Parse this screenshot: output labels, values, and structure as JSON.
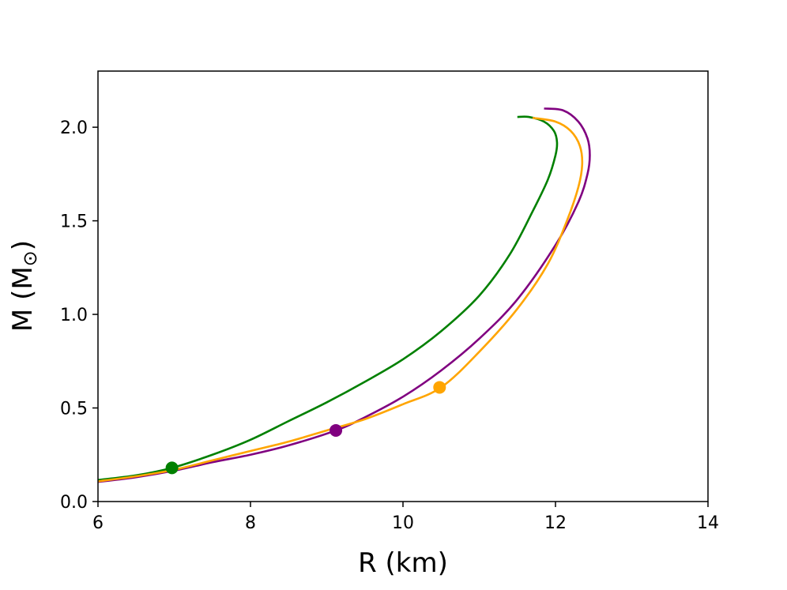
{
  "chart_data": {
    "type": "line",
    "xlabel": "R (km)",
    "ylabel": {
      "main": "M (M",
      "sub": "⊙",
      "close": ")"
    },
    "xlim": [
      6,
      14
    ],
    "ylim": [
      0,
      2.3
    ],
    "xticks": [
      6,
      8,
      10,
      12,
      14
    ],
    "yticks": [
      0.0,
      0.5,
      1.0,
      1.5,
      2.0
    ],
    "xtick_labels": [
      "6",
      "8",
      "10",
      "12",
      "14"
    ],
    "ytick_labels": [
      "0.0",
      "0.5",
      "1.0",
      "1.5",
      "2.0"
    ],
    "grid": false,
    "series": [
      {
        "color": "#008000",
        "x": [
          6.0,
          6.5,
          6.97,
          7.5,
          8.0,
          8.5,
          9.0,
          9.5,
          10.0,
          10.5,
          11.0,
          11.4,
          11.7,
          11.9,
          12.0,
          12.02,
          11.98,
          11.85,
          11.65,
          11.5
        ],
        "y": [
          0.115,
          0.14,
          0.18,
          0.25,
          0.33,
          0.43,
          0.53,
          0.64,
          0.76,
          0.91,
          1.1,
          1.32,
          1.55,
          1.72,
          1.85,
          1.92,
          1.98,
          2.03,
          2.055,
          2.055
        ],
        "marker": {
          "x": 6.97,
          "y": 0.18
        }
      },
      {
        "color": "#800080",
        "x": [
          6.0,
          6.5,
          7.0,
          7.5,
          8.0,
          8.5,
          9.12,
          9.5,
          10.0,
          10.5,
          11.0,
          11.5,
          12.0,
          12.3,
          12.42,
          12.45,
          12.42,
          12.3,
          12.1,
          11.85
        ],
        "y": [
          0.105,
          0.13,
          0.165,
          0.21,
          0.25,
          0.3,
          0.38,
          0.45,
          0.56,
          0.7,
          0.87,
          1.08,
          1.37,
          1.6,
          1.75,
          1.85,
          1.94,
          2.03,
          2.09,
          2.1
        ],
        "marker": {
          "x": 9.12,
          "y": 0.38
        }
      },
      {
        "color": "#FFA500",
        "x": [
          6.0,
          6.5,
          7.0,
          7.5,
          8.0,
          8.5,
          9.0,
          9.5,
          10.0,
          10.5,
          11.0,
          11.5,
          11.9,
          12.15,
          12.3,
          12.35,
          12.32,
          12.2,
          12.0,
          11.7
        ],
        "y": [
          0.108,
          0.135,
          0.17,
          0.22,
          0.27,
          0.32,
          0.38,
          0.44,
          0.52,
          0.61,
          0.8,
          1.03,
          1.27,
          1.5,
          1.68,
          1.8,
          1.9,
          1.98,
          2.03,
          2.05
        ],
        "marker": {
          "x": 10.48,
          "y": 0.61
        }
      }
    ]
  }
}
